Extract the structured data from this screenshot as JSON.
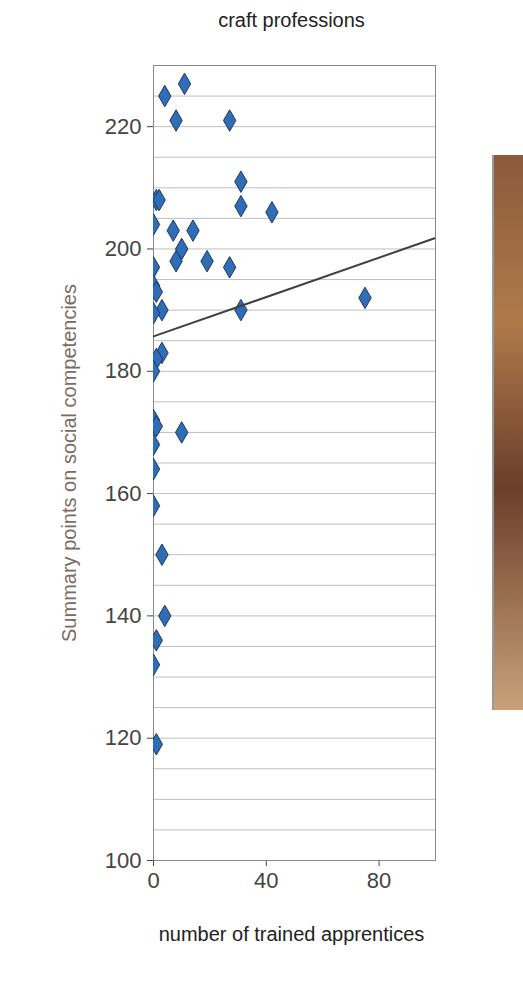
{
  "chart_data": {
    "type": "scatter",
    "title": "craft professions",
    "x_label": "number of trained apprentices",
    "y_label": "Summary points on social competencies",
    "xlim": [
      0,
      100
    ],
    "xticks": [
      0,
      40,
      80
    ],
    "ylim": [
      100,
      230
    ],
    "yticks": [
      100,
      120,
      140,
      160,
      180,
      200,
      220
    ],
    "grid": true,
    "series": [
      {
        "type": "scatter",
        "color": "#2f6db5",
        "marker": "diamond",
        "x": [
          4,
          11,
          8,
          27,
          1,
          2,
          31,
          0,
          7,
          14,
          31,
          42,
          10,
          8,
          19,
          27,
          0,
          0,
          1,
          3,
          0,
          31,
          75,
          3,
          1,
          0,
          0,
          1,
          10,
          0,
          0,
          0,
          3,
          4,
          1,
          0,
          1
        ],
        "values": [
          225,
          227,
          221,
          221,
          208,
          208,
          211,
          204,
          203,
          203,
          207,
          206,
          200,
          198,
          198,
          197,
          197,
          194,
          193,
          190,
          189.5,
          190,
          192,
          183,
          182,
          180,
          172,
          171,
          170,
          168,
          164,
          158,
          150,
          140,
          136,
          132,
          119
        ]
      },
      {
        "type": "line",
        "color": "#404040",
        "line_style": "solid",
        "x": [
          0,
          100
        ],
        "values": [
          185.7,
          201.8
        ]
      }
    ]
  }
}
